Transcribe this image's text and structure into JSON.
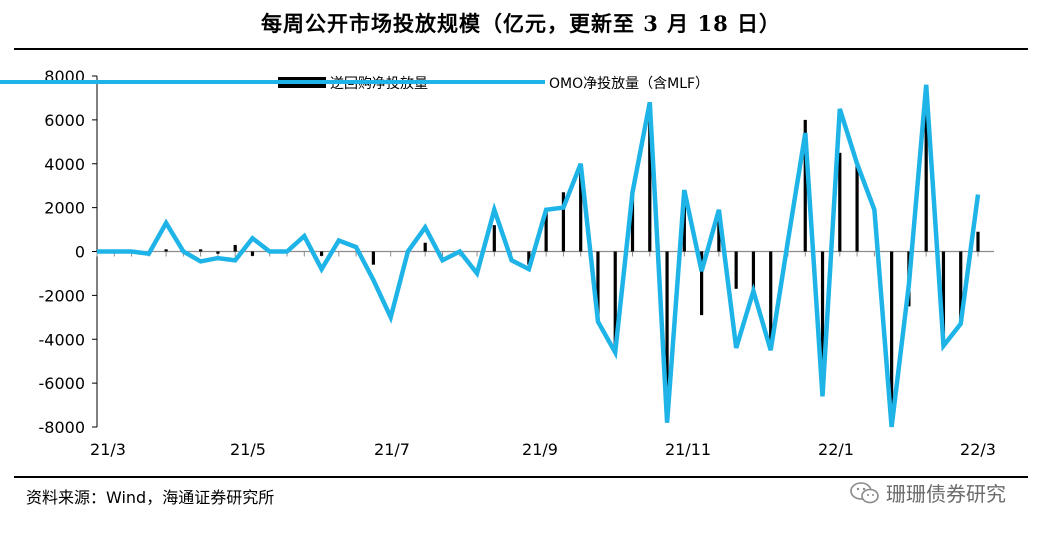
{
  "title": "每周公开市场投放规模（亿元，更新至 3 月 18 日）",
  "source": "资料来源：Wind，海通证券研究所",
  "watermark": "珊珊债券研究",
  "chart_data": {
    "type": "bar+line",
    "ylim": [
      -8000,
      8000
    ],
    "yticks": [
      8000,
      6000,
      4000,
      2000,
      0,
      -2000,
      -4000,
      -6000,
      -8000
    ],
    "xtick_labels": [
      "21/3",
      "21/5",
      "21/7",
      "21/9",
      "21/11",
      "22/1",
      "22/3"
    ],
    "legend_placement": "top",
    "series": [
      {
        "name": "逆回购净投放量",
        "kind": "bar",
        "color": "#000000",
        "values": [
          0,
          0,
          0,
          0,
          100,
          0,
          100,
          -100,
          300,
          -200,
          0,
          0,
          0,
          -200,
          0,
          0,
          -600,
          0,
          0,
          400,
          0,
          0,
          0,
          1200,
          0,
          -600,
          1900,
          2700,
          3800,
          -3200,
          -4600,
          2600,
          6800,
          -7800,
          2800,
          -2900,
          1900,
          -1700,
          -1800,
          -4500,
          0,
          6000,
          -6600,
          4500,
          4000,
          0,
          -7800,
          -2500,
          6800,
          -4300,
          -3300,
          900
        ]
      },
      {
        "name": "OMO净投放量（含MLF）",
        "kind": "line",
        "color": "#1fb4e8",
        "values": [
          0,
          0,
          0,
          -100,
          1300,
          0,
          -450,
          -300,
          -400,
          600,
          0,
          0,
          700,
          -800,
          500,
          200,
          -1300,
          -3000,
          0,
          1100,
          -400,
          0,
          -1000,
          1900,
          -400,
          -800,
          1900,
          2000,
          4000,
          -3200,
          -4600,
          2700,
          6800,
          -7800,
          2800,
          -900,
          1900,
          -4400,
          -1800,
          -4500,
          500,
          5400,
          -6600,
          6500,
          4000,
          1900,
          -8000,
          -1500,
          7600,
          -4300,
          -3300,
          2600
        ]
      }
    ]
  }
}
